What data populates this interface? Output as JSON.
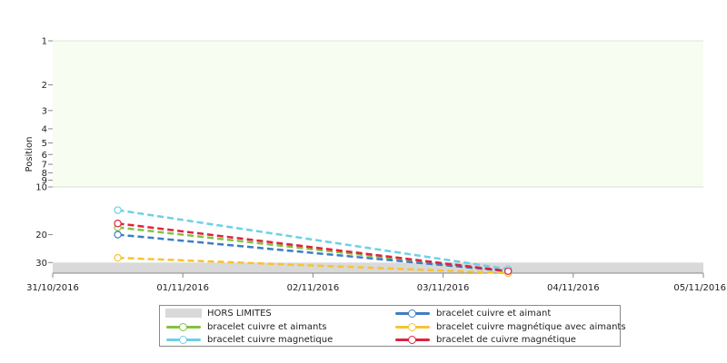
{
  "chart_data": {
    "type": "line",
    "title": "",
    "xlabel": "",
    "ylabel": "Position",
    "y_scale": "log",
    "y_inverted": true,
    "ylim": [
      1,
      35
    ],
    "y_ticks": [
      1,
      2,
      3,
      4,
      5,
      6,
      7,
      8,
      9,
      10,
      20,
      30
    ],
    "y_tick_labels": [
      "1",
      "2",
      "3",
      "4",
      "5",
      "6",
      "7",
      "8",
      "9",
      "10",
      "20",
      "30"
    ],
    "xlim": [
      "2016-10-31",
      "2016-11-05"
    ],
    "x_tick_labels": [
      "31/10/2016",
      "01/11/2016",
      "02/11/2016",
      "03/11/2016",
      "04/11/2016",
      "05/11/2016"
    ],
    "x": [
      "2016-10-31T12:00",
      "2016-11-03T12:00"
    ],
    "top10_zone_color": "#f7fdf0",
    "out_of_range_band": {
      "name": "HORS LIMITES",
      "from": 30,
      "color": "#d9d9d9"
    },
    "series": [
      {
        "name": "bracelet cuivre et aimants",
        "color": "#82c341",
        "values": [
          18,
          34
        ]
      },
      {
        "name": "bracelet cuivre magnetique",
        "color": "#6dd0e6",
        "values": [
          14,
          33
        ]
      },
      {
        "name": "bracelet cuivre et aimant",
        "color": "#3e7dc2",
        "values": [
          20,
          34
        ]
      },
      {
        "name": "bracelet cuivre magnétique avec aimants",
        "color": "#f8c332",
        "values": [
          28,
          35
        ]
      },
      {
        "name": "bracelet de cuivre magnétique",
        "color": "#e0223e",
        "values": [
          17,
          34
        ]
      }
    ],
    "legend": {
      "position": "bottom",
      "items": [
        {
          "label": "HORS LIMITES",
          "kind": "band",
          "color": "#d9d9d9"
        },
        {
          "label": "bracelet cuivre et aimant",
          "kind": "line",
          "color": "#3e7dc2"
        },
        {
          "label": "bracelet cuivre et aimants",
          "kind": "line",
          "color": "#82c341"
        },
        {
          "label": "bracelet cuivre magnétique avec aimants",
          "kind": "line",
          "color": "#f8c332"
        },
        {
          "label": "bracelet cuivre magnetique",
          "kind": "line",
          "color": "#6dd0e6"
        },
        {
          "label": "bracelet de cuivre magnétique",
          "kind": "line",
          "color": "#e0223e"
        }
      ]
    }
  }
}
